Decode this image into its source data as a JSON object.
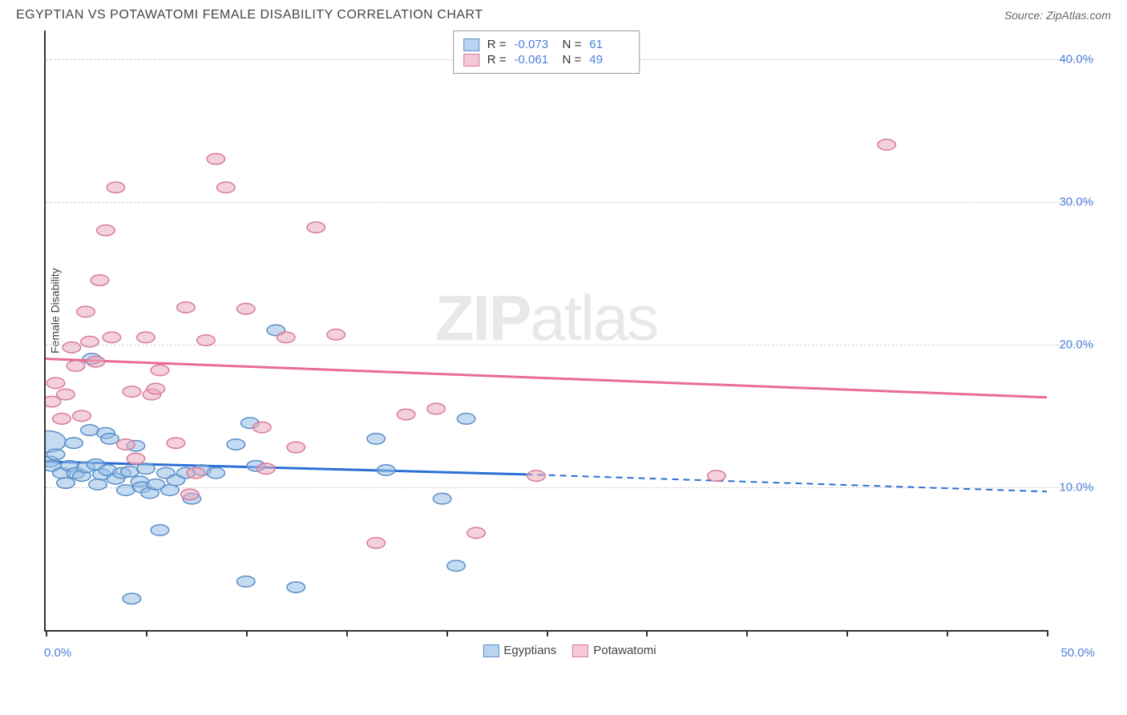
{
  "header": {
    "title": "EGYPTIAN VS POTAWATOMI FEMALE DISABILITY CORRELATION CHART",
    "source_label": "Source: ZipAtlas.com"
  },
  "chart": {
    "type": "scatter",
    "y_axis_label": "Female Disability",
    "watermark_zip": "ZIP",
    "watermark_atlas": "atlas",
    "x_range": [
      0,
      50
    ],
    "y_range": [
      0,
      42
    ],
    "x_min_label": "0.0%",
    "x_max_label": "50.0%",
    "y_ticks": [
      {
        "value": 10,
        "label": "10.0%"
      },
      {
        "value": 20,
        "label": "20.0%"
      },
      {
        "value": 30,
        "label": "30.0%"
      },
      {
        "value": 40,
        "label": "40.0%"
      }
    ],
    "x_tick_positions": [
      0,
      5,
      10,
      15,
      20,
      25,
      30,
      35,
      40,
      45,
      50
    ],
    "grid_color": "#d8d8d8",
    "background_color": "#ffffff",
    "legend_top": {
      "rows": [
        {
          "swatch_fill": "#b8d4f0",
          "swatch_border": "#5a8fc8",
          "r_label": "R =",
          "r_value": "-0.073",
          "n_label": "N =",
          "n_value": "61"
        },
        {
          "swatch_fill": "#f5c8d5",
          "swatch_border": "#d87a9a",
          "r_label": "R =",
          "r_value": "-0.061",
          "n_label": "N =",
          "n_value": "49"
        }
      ]
    },
    "legend_bottom": {
      "items": [
        {
          "swatch_fill": "#b8d4f0",
          "swatch_border": "#5a8fc8",
          "label": "Egyptians"
        },
        {
          "swatch_fill": "#f5c8d5",
          "swatch_border": "#d87a9a",
          "label": "Potawatomi"
        }
      ]
    },
    "series": [
      {
        "name": "Egyptians",
        "marker_fill": "rgba(150,190,230,0.55)",
        "marker_stroke": "#5a8fc8",
        "marker_radius": 9,
        "trend_color": "#2b6fd6",
        "trend_start": {
          "x": 0,
          "y": 11.8
        },
        "trend_solid_end": {
          "x": 24,
          "y": 10.9
        },
        "trend_dash_end": {
          "x": 50,
          "y": 9.7
        },
        "points": [
          {
            "x": 0.1,
            "y": 13.2,
            "r": 18
          },
          {
            "x": 0.2,
            "y": 11.8
          },
          {
            "x": 0.3,
            "y": 11.5
          },
          {
            "x": 0.5,
            "y": 12.3
          },
          {
            "x": 0.8,
            "y": 11.0
          },
          {
            "x": 1.0,
            "y": 10.3
          },
          {
            "x": 1.2,
            "y": 11.5
          },
          {
            "x": 1.4,
            "y": 13.1
          },
          {
            "x": 1.5,
            "y": 11.0
          },
          {
            "x": 1.8,
            "y": 10.8
          },
          {
            "x": 2.0,
            "y": 11.4
          },
          {
            "x": 2.2,
            "y": 14.0
          },
          {
            "x": 2.3,
            "y": 19.0
          },
          {
            "x": 2.5,
            "y": 11.6
          },
          {
            "x": 2.6,
            "y": 10.2
          },
          {
            "x": 2.8,
            "y": 10.9
          },
          {
            "x": 3.0,
            "y": 13.8
          },
          {
            "x": 3.1,
            "y": 11.2
          },
          {
            "x": 3.2,
            "y": 13.4
          },
          {
            "x": 3.5,
            "y": 10.6
          },
          {
            "x": 3.8,
            "y": 11.0
          },
          {
            "x": 4.0,
            "y": 9.8
          },
          {
            "x": 4.2,
            "y": 11.1
          },
          {
            "x": 4.3,
            "y": 2.2
          },
          {
            "x": 4.5,
            "y": 12.9
          },
          {
            "x": 4.7,
            "y": 10.4
          },
          {
            "x": 4.8,
            "y": 10.0
          },
          {
            "x": 5.0,
            "y": 11.3
          },
          {
            "x": 5.2,
            "y": 9.6
          },
          {
            "x": 5.5,
            "y": 10.2
          },
          {
            "x": 5.7,
            "y": 7.0
          },
          {
            "x": 6.0,
            "y": 11.0
          },
          {
            "x": 6.2,
            "y": 9.8
          },
          {
            "x": 6.5,
            "y": 10.5
          },
          {
            "x": 7.0,
            "y": 11.0
          },
          {
            "x": 7.3,
            "y": 9.2
          },
          {
            "x": 7.8,
            "y": 11.2
          },
          {
            "x": 8.5,
            "y": 11.0
          },
          {
            "x": 9.5,
            "y": 13.0
          },
          {
            "x": 10.0,
            "y": 3.4
          },
          {
            "x": 10.2,
            "y": 14.5
          },
          {
            "x": 10.5,
            "y": 11.5
          },
          {
            "x": 11.5,
            "y": 21.0
          },
          {
            "x": 12.5,
            "y": 3.0
          },
          {
            "x": 16.5,
            "y": 13.4
          },
          {
            "x": 17.0,
            "y": 11.2
          },
          {
            "x": 19.8,
            "y": 9.2
          },
          {
            "x": 20.5,
            "y": 4.5
          },
          {
            "x": 21.0,
            "y": 14.8
          }
        ]
      },
      {
        "name": "Potawatomi",
        "marker_fill": "rgba(235,170,190,0.55)",
        "marker_stroke": "#d87a9a",
        "marker_radius": 9,
        "trend_color": "#e86b96",
        "trend_start": {
          "x": 0,
          "y": 19.0
        },
        "trend_solid_end": {
          "x": 50,
          "y": 16.3
        },
        "trend_dash_end": null,
        "points": [
          {
            "x": 0.3,
            "y": 16.0
          },
          {
            "x": 0.5,
            "y": 17.3
          },
          {
            "x": 0.8,
            "y": 14.8
          },
          {
            "x": 1.0,
            "y": 16.5
          },
          {
            "x": 1.3,
            "y": 19.8
          },
          {
            "x": 1.5,
            "y": 18.5
          },
          {
            "x": 1.8,
            "y": 15.0
          },
          {
            "x": 2.0,
            "y": 22.3
          },
          {
            "x": 2.2,
            "y": 20.2
          },
          {
            "x": 2.5,
            "y": 18.8
          },
          {
            "x": 2.7,
            "y": 24.5
          },
          {
            "x": 3.0,
            "y": 28.0
          },
          {
            "x": 3.3,
            "y": 20.5
          },
          {
            "x": 3.5,
            "y": 31.0
          },
          {
            "x": 4.0,
            "y": 13.0
          },
          {
            "x": 4.3,
            "y": 16.7
          },
          {
            "x": 4.5,
            "y": 12.0
          },
          {
            "x": 5.0,
            "y": 20.5
          },
          {
            "x": 5.3,
            "y": 16.5
          },
          {
            "x": 5.5,
            "y": 16.9
          },
          {
            "x": 5.7,
            "y": 18.2
          },
          {
            "x": 6.5,
            "y": 13.1
          },
          {
            "x": 7.0,
            "y": 22.6
          },
          {
            "x": 7.2,
            "y": 9.5
          },
          {
            "x": 7.5,
            "y": 11.0
          },
          {
            "x": 8.0,
            "y": 20.3
          },
          {
            "x": 8.5,
            "y": 33.0
          },
          {
            "x": 9.0,
            "y": 31.0
          },
          {
            "x": 10.0,
            "y": 22.5
          },
          {
            "x": 10.8,
            "y": 14.2
          },
          {
            "x": 11.0,
            "y": 11.3
          },
          {
            "x": 12.0,
            "y": 20.5
          },
          {
            "x": 12.5,
            "y": 12.8
          },
          {
            "x": 13.5,
            "y": 28.2
          },
          {
            "x": 14.5,
            "y": 20.7
          },
          {
            "x": 16.5,
            "y": 6.1
          },
          {
            "x": 18.0,
            "y": 15.1
          },
          {
            "x": 19.5,
            "y": 15.5
          },
          {
            "x": 21.5,
            "y": 6.8
          },
          {
            "x": 24.5,
            "y": 10.8
          },
          {
            "x": 33.5,
            "y": 10.8
          },
          {
            "x": 42.0,
            "y": 34.0
          }
        ]
      }
    ]
  }
}
